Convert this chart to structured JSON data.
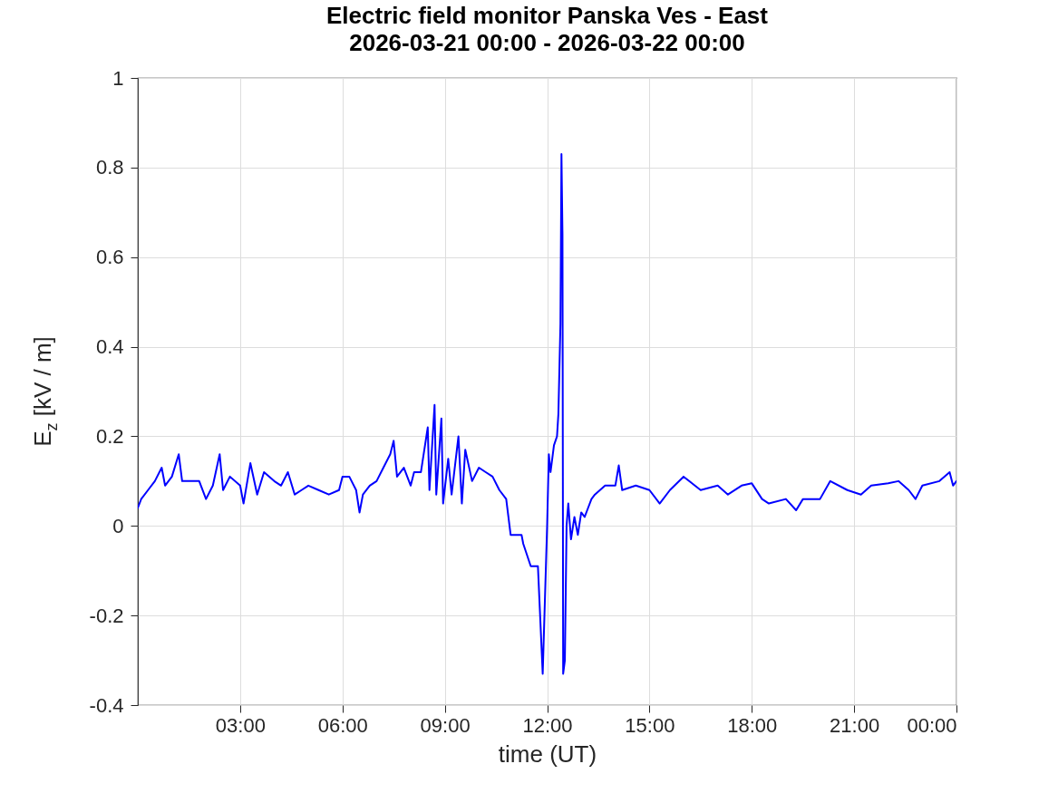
{
  "chart_data": {
    "type": "line",
    "title": "Electric field monitor Panska Ves - East",
    "subtitle": "2026-03-21 00:00 - 2026-03-22 00:00",
    "xlabel": "time (UT)",
    "ylabel": "E$_{z}$ [kV / m]",
    "xlim": [
      0,
      24
    ],
    "xticks": [
      {
        "value": 3,
        "label": "03:00"
      },
      {
        "value": 6,
        "label": "06:00"
      },
      {
        "value": 9,
        "label": "09:00"
      },
      {
        "value": 12,
        "label": "12:00"
      },
      {
        "value": 15,
        "label": "15:00"
      },
      {
        "value": 18,
        "label": "18:00"
      },
      {
        "value": 21,
        "label": "21:00"
      },
      {
        "value": 24,
        "label": "00:00"
      }
    ],
    "ylim": [
      -0.4,
      1
    ],
    "yticks": [
      -0.4,
      -0.2,
      0,
      0.2,
      0.4,
      0.6,
      0.8,
      1
    ],
    "grid": true,
    "legend": false,
    "line_style": "solid",
    "series": [
      {
        "color": "#0000ff",
        "x": [
          0,
          0.1,
          0.3,
          0.5,
          0.7,
          0.8,
          1.0,
          1.2,
          1.3,
          1.5,
          1.8,
          2.0,
          2.2,
          2.4,
          2.5,
          2.7,
          3.0,
          3.1,
          3.3,
          3.5,
          3.7,
          4.0,
          4.2,
          4.4,
          4.6,
          4.8,
          5.0,
          5.3,
          5.6,
          5.9,
          6.0,
          6.2,
          6.4,
          6.5,
          6.6,
          6.8,
          7.0,
          7.2,
          7.4,
          7.5,
          7.6,
          7.8,
          8.0,
          8.1,
          8.3,
          8.5,
          8.55,
          8.7,
          8.75,
          8.9,
          8.95,
          9.1,
          9.2,
          9.4,
          9.5,
          9.6,
          9.8,
          10.0,
          10.2,
          10.4,
          10.6,
          10.8,
          10.93,
          11.25,
          11.3,
          11.52,
          11.73,
          11.87,
          12.0,
          12.05,
          12.1,
          12.2,
          12.29,
          12.33,
          12.39,
          12.42,
          12.45,
          12.47,
          12.52,
          12.57,
          12.62,
          12.7,
          12.8,
          12.9,
          13.0,
          13.1,
          13.2,
          13.3,
          13.4,
          13.7,
          14.0,
          14.1,
          14.2,
          14.6,
          15.0,
          15.3,
          15.6,
          16.0,
          16.5,
          17.0,
          17.3,
          17.7,
          18.0,
          18.3,
          18.5,
          19.0,
          19.3,
          19.5,
          20.0,
          20.3,
          20.8,
          21.2,
          21.5,
          22.0,
          22.3,
          22.6,
          22.8,
          23.0,
          23.5,
          23.8,
          23.9,
          24.0
        ],
        "values": [
          0.04,
          0.06,
          0.08,
          0.1,
          0.13,
          0.09,
          0.11,
          0.16,
          0.1,
          0.1,
          0.1,
          0.06,
          0.09,
          0.16,
          0.08,
          0.11,
          0.09,
          0.05,
          0.14,
          0.07,
          0.12,
          0.1,
          0.09,
          0.12,
          0.07,
          0.08,
          0.09,
          0.08,
          0.07,
          0.08,
          0.11,
          0.11,
          0.08,
          0.03,
          0.07,
          0.09,
          0.1,
          0.13,
          0.16,
          0.19,
          0.11,
          0.13,
          0.09,
          0.12,
          0.12,
          0.22,
          0.08,
          0.27,
          0.07,
          0.24,
          0.05,
          0.15,
          0.07,
          0.2,
          0.05,
          0.17,
          0.1,
          0.13,
          0.12,
          0.11,
          0.08,
          0.06,
          -0.02,
          -0.02,
          -0.04,
          -0.09,
          -0.09,
          -0.33,
          0.0,
          0.16,
          0.12,
          0.18,
          0.2,
          0.25,
          0.45,
          0.83,
          0.65,
          -0.33,
          -0.3,
          0.0,
          0.05,
          -0.03,
          0.02,
          -0.02,
          0.03,
          0.02,
          0.04,
          0.06,
          0.07,
          0.09,
          0.09,
          0.135,
          0.08,
          0.09,
          0.08,
          0.05,
          0.08,
          0.11,
          0.08,
          0.09,
          0.07,
          0.09,
          0.095,
          0.06,
          0.05,
          0.06,
          0.035,
          0.06,
          0.06,
          0.1,
          0.08,
          0.07,
          0.09,
          0.095,
          0.1,
          0.08,
          0.06,
          0.09,
          0.1,
          0.12,
          0.09,
          0.1
        ]
      }
    ]
  }
}
